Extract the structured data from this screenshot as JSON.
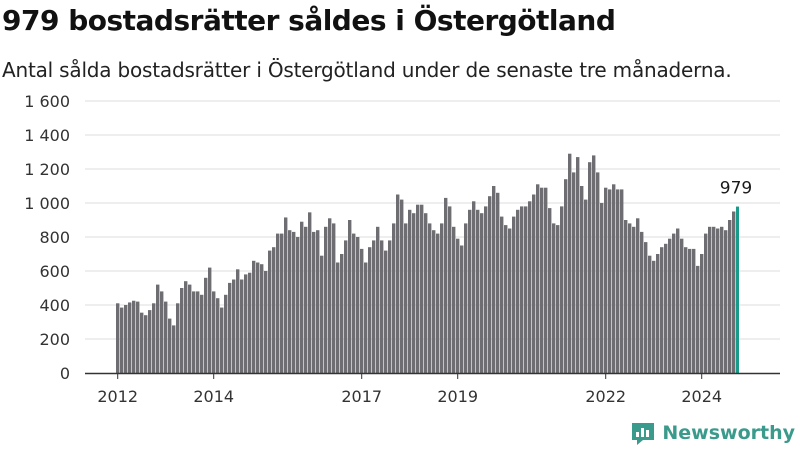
{
  "title": "979 bostadsrätter såldes i Östergötland",
  "subtitle": "Antal sålda bostadsrätter i Östergötland under de senaste tre månaderna.",
  "brand": "Newsworthy",
  "colors": {
    "bar": "#6e6d72",
    "highlight": "#1a9a8a",
    "grid": "#dddddd",
    "brand": "#3a9a8c"
  },
  "chart_data": {
    "type": "bar",
    "title": "979 bostadsrätter såldes i Östergötland",
    "subtitle": "Antal sålda bostadsrätter i Östergötland under de senaste tre månaderna.",
    "xlabel": "",
    "ylabel": "",
    "ylim": [
      0,
      1600
    ],
    "yticks": [
      0,
      200,
      400,
      600,
      800,
      1000,
      1200,
      1400,
      1600
    ],
    "ytick_labels": [
      "0",
      "200",
      "400",
      "600",
      "800",
      "1 000",
      "1 200",
      "1 400",
      "1 600"
    ],
    "xtick_labels": [
      {
        "label": "2012",
        "index": 0
      },
      {
        "label": "2014",
        "index": 24
      },
      {
        "label": "2017",
        "index": 61
      },
      {
        "label": "2019",
        "index": 85
      },
      {
        "label": "2022",
        "index": 122
      },
      {
        "label": "2024",
        "index": 146
      }
    ],
    "grid": true,
    "highlight_label": "979",
    "values": [
      410,
      385,
      400,
      415,
      425,
      420,
      355,
      340,
      370,
      410,
      520,
      480,
      420,
      320,
      280,
      410,
      500,
      540,
      520,
      480,
      480,
      460,
      560,
      620,
      480,
      440,
      385,
      460,
      530,
      550,
      610,
      550,
      580,
      590,
      660,
      650,
      640,
      600,
      720,
      740,
      820,
      820,
      915,
      840,
      830,
      800,
      890,
      860,
      945,
      830,
      840,
      690,
      860,
      910,
      880,
      650,
      700,
      780,
      900,
      820,
      800,
      730,
      650,
      740,
      780,
      860,
      780,
      720,
      780,
      880,
      1050,
      1020,
      880,
      960,
      940,
      990,
      990,
      940,
      880,
      840,
      820,
      880,
      1030,
      980,
      860,
      790,
      750,
      880,
      960,
      1010,
      960,
      940,
      980,
      1040,
      1100,
      1060,
      920,
      870,
      850,
      920,
      960,
      980,
      980,
      1010,
      1050,
      1110,
      1090,
      1090,
      970,
      880,
      870,
      980,
      1140,
      1290,
      1180,
      1270,
      1100,
      1020,
      1240,
      1280,
      1180,
      1000,
      1090,
      1080,
      1110,
      1080,
      1080,
      900,
      880,
      860,
      910,
      830,
      770,
      690,
      660,
      700,
      740,
      760,
      790,
      820,
      850,
      790,
      740,
      730,
      730,
      630,
      700,
      820,
      860,
      860,
      850,
      860,
      840,
      900,
      950,
      979
    ]
  }
}
